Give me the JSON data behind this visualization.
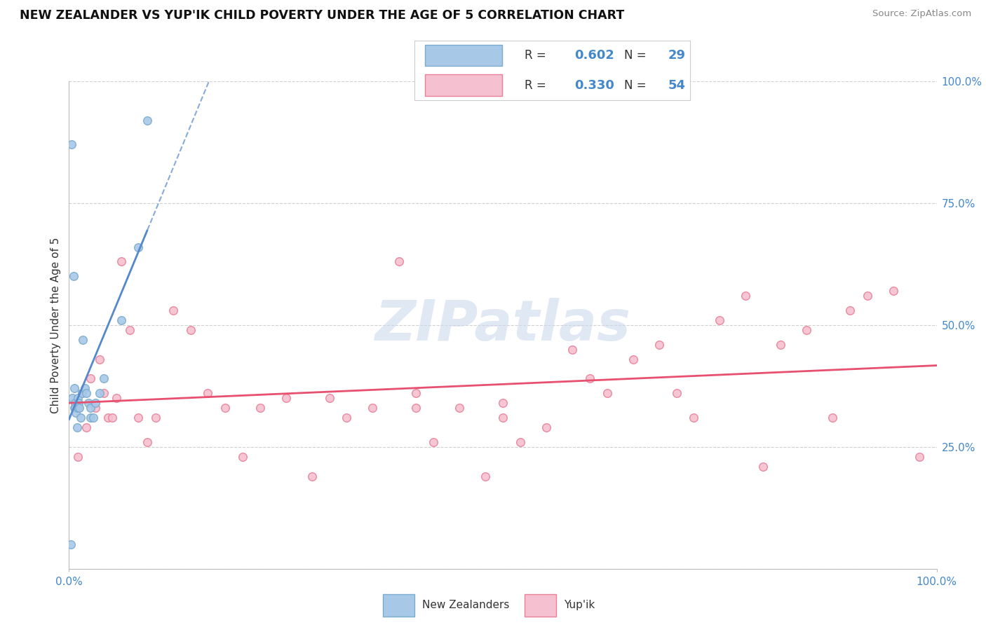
{
  "title": "NEW ZEALANDER VS YUP'IK CHILD POVERTY UNDER THE AGE OF 5 CORRELATION CHART",
  "source": "Source: ZipAtlas.com",
  "ylabel": "Child Poverty Under the Age of 5",
  "xlim": [
    0.0,
    1.0
  ],
  "ylim": [
    0.0,
    1.0
  ],
  "yticks": [
    0.0,
    0.25,
    0.5,
    0.75,
    1.0
  ],
  "ytick_labels": [
    "",
    "25.0%",
    "50.0%",
    "75.0%",
    "100.0%"
  ],
  "xtick_labels": [
    "0.0%",
    "100.0%"
  ],
  "background_color": "#ffffff",
  "grid_color": "#d0d0d0",
  "nz_color": "#a8c8e8",
  "nz_edge_color": "#7aabcc",
  "yupik_color": "#f5c0d0",
  "yupik_edge_color": "#e88098",
  "nz_R": "0.602",
  "nz_N": "29",
  "yupik_R": "0.330",
  "yupik_N": "54",
  "nz_line_color": "#5588cc",
  "yupik_line_color": "#e85070",
  "legend_label1": "New Zealanders",
  "legend_label2": "Yup'ik",
  "R_label_color": "#333333",
  "N_value_color": "#4488cc",
  "watermark_color": "#ccdaee",
  "nz_scatter_x": [
    0.002,
    0.003,
    0.004,
    0.005,
    0.006,
    0.006,
    0.007,
    0.007,
    0.008,
    0.009,
    0.01,
    0.01,
    0.011,
    0.012,
    0.013,
    0.015,
    0.016,
    0.018,
    0.02,
    0.022,
    0.025,
    0.025,
    0.028,
    0.03,
    0.035,
    0.04,
    0.06,
    0.08,
    0.09
  ],
  "nz_scatter_y": [
    0.05,
    0.87,
    0.35,
    0.6,
    0.37,
    0.33,
    0.34,
    0.33,
    0.32,
    0.29,
    0.35,
    0.33,
    0.34,
    0.33,
    0.31,
    0.36,
    0.47,
    0.37,
    0.36,
    0.34,
    0.33,
    0.31,
    0.31,
    0.34,
    0.36,
    0.39,
    0.51,
    0.66,
    0.92
  ],
  "yupik_scatter_x": [
    0.008,
    0.01,
    0.015,
    0.02,
    0.025,
    0.03,
    0.035,
    0.04,
    0.045,
    0.05,
    0.055,
    0.06,
    0.07,
    0.08,
    0.09,
    0.1,
    0.12,
    0.14,
    0.16,
    0.18,
    0.2,
    0.22,
    0.25,
    0.28,
    0.3,
    0.32,
    0.35,
    0.38,
    0.4,
    0.42,
    0.45,
    0.48,
    0.5,
    0.52,
    0.55,
    0.58,
    0.6,
    0.62,
    0.65,
    0.68,
    0.7,
    0.72,
    0.75,
    0.78,
    0.8,
    0.82,
    0.85,
    0.88,
    0.9,
    0.92,
    0.95,
    0.98,
    0.4,
    0.5
  ],
  "yupik_scatter_y": [
    0.33,
    0.23,
    0.36,
    0.29,
    0.39,
    0.33,
    0.43,
    0.36,
    0.31,
    0.31,
    0.35,
    0.63,
    0.49,
    0.31,
    0.26,
    0.31,
    0.53,
    0.49,
    0.36,
    0.33,
    0.23,
    0.33,
    0.35,
    0.19,
    0.35,
    0.31,
    0.33,
    0.63,
    0.36,
    0.26,
    0.33,
    0.19,
    0.31,
    0.26,
    0.29,
    0.45,
    0.39,
    0.36,
    0.43,
    0.46,
    0.36,
    0.31,
    0.51,
    0.56,
    0.21,
    0.46,
    0.49,
    0.31,
    0.53,
    0.56,
    0.57,
    0.23,
    0.33,
    0.34
  ],
  "marker_size": 70,
  "marker_linewidth": 1.0,
  "marker_alpha": 0.9
}
